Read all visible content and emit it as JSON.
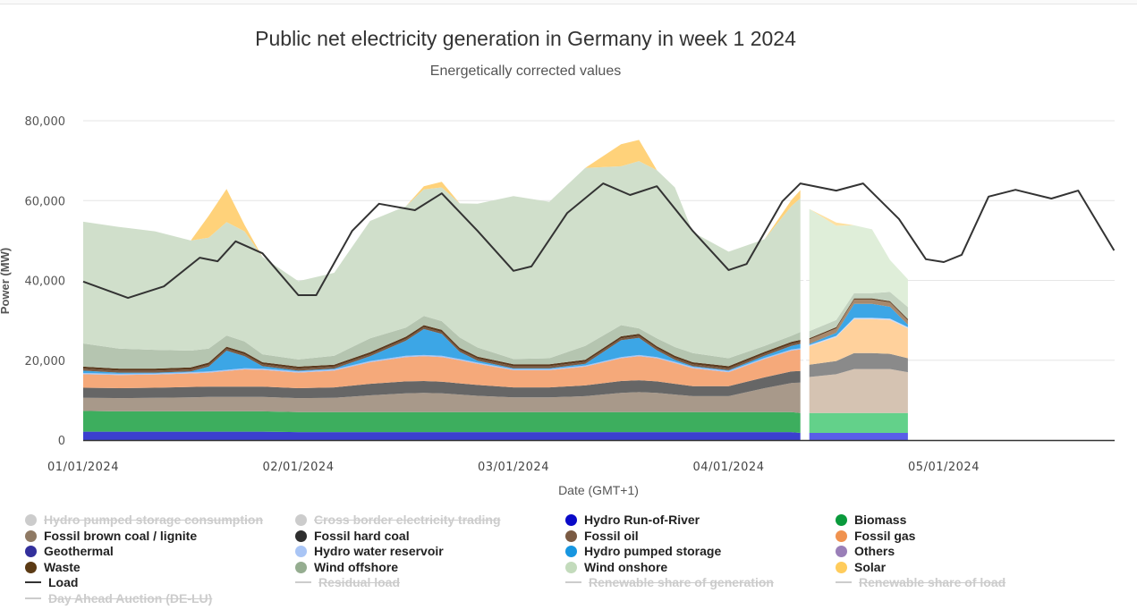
{
  "chart_data": {
    "type": "area",
    "title": "Public net electricity generation in Germany in week 1 2024",
    "subtitle": "Energetically corrected values",
    "xlabel": "Date (GMT+1)",
    "ylabel": "Power (MW)",
    "ylim": [
      0,
      80000
    ],
    "yticks": [
      0,
      20000,
      40000,
      60000,
      80000
    ],
    "ytick_labels": [
      "0",
      "20,000",
      "40,000",
      "60,000",
      "80,000"
    ],
    "x_unit": "hours since 01/01/2024 00:00",
    "xlim": [
      0,
      115
    ],
    "xticks": [
      0,
      24,
      48,
      72,
      96
    ],
    "xtick_labels": [
      "01/01/2024",
      "02/01/2024",
      "03/01/2024",
      "04/01/2024",
      "05/01/2024"
    ],
    "grid": true,
    "legend_position": "bottom",
    "actual_data_end_hour": 80,
    "forecast_end_hour": 92,
    "stack_order": [
      "Hydro Run-of-River",
      "Biomass",
      "Fossil brown coal / lignite",
      "Fossil hard coal",
      "Fossil gas",
      "Hydro water reservoir",
      "Hydro pumped storage",
      "Fossil oil",
      "Waste",
      "Wind offshore",
      "Wind onshore",
      "Solar"
    ],
    "x": [
      0,
      4,
      8,
      12,
      14,
      16,
      18,
      20,
      24,
      28,
      32,
      36,
      38,
      40,
      42,
      44,
      48,
      52,
      56,
      60,
      62,
      64,
      66,
      68,
      72,
      76,
      79,
      80,
      81,
      84,
      86,
      88,
      90,
      92
    ],
    "series": [
      {
        "name": "Hydro Run-of-River",
        "color": "#3b3fcf",
        "forecast_color": "#5a5ee8",
        "values": [
          2100,
          2100,
          2100,
          2100,
          2100,
          2100,
          2100,
          2100,
          2000,
          2000,
          2000,
          2000,
          2000,
          2000,
          2000,
          2000,
          2000,
          2000,
          2000,
          2000,
          2000,
          2000,
          2000,
          2000,
          2000,
          2000,
          2000,
          1800,
          1800,
          1800,
          1800,
          1800,
          1800,
          1800
        ]
      },
      {
        "name": "Biomass",
        "color": "#3dae5e",
        "forecast_color": "#63d18a",
        "values": [
          5200,
          5100,
          5100,
          5100,
          5100,
          5100,
          5100,
          5100,
          5000,
          5000,
          5000,
          5000,
          5000,
          5000,
          5000,
          5000,
          5000,
          5000,
          5000,
          5000,
          5000,
          5000,
          5000,
          5000,
          5000,
          5000,
          5000,
          5000,
          5000,
          5000,
          5000,
          5000,
          5000,
          5000
        ]
      },
      {
        "name": "Fossil brown coal / lignite",
        "color": "#a8998a",
        "forecast_color": "#d5c3b2",
        "values": [
          3300,
          3300,
          3400,
          3500,
          3600,
          3600,
          3600,
          3600,
          3500,
          3600,
          4200,
          4700,
          4800,
          4700,
          4400,
          4100,
          3700,
          3700,
          4000,
          4800,
          5000,
          4800,
          4400,
          4000,
          4000,
          6000,
          7300,
          7600,
          9000,
          9700,
          11000,
          11000,
          11000,
          10200
        ]
      },
      {
        "name": "Fossil hard coal",
        "color": "#666666",
        "forecast_color": "#8a8a8a",
        "values": [
          2500,
          2500,
          2500,
          2600,
          2600,
          2600,
          2600,
          2600,
          2500,
          2600,
          2900,
          3000,
          3000,
          2900,
          2800,
          2700,
          2500,
          2500,
          2700,
          3000,
          3000,
          2900,
          2700,
          2500,
          2500,
          2700,
          2900,
          2900,
          3100,
          3300,
          4000,
          4000,
          3800,
          3500
        ]
      },
      {
        "name": "Fossil gas",
        "color": "#f5a97a",
        "forecast_color": "#ffd19c",
        "values": [
          3400,
          3300,
          3300,
          3400,
          3500,
          3900,
          4300,
          4200,
          3900,
          4200,
          5400,
          6100,
          6200,
          6200,
          5800,
          5300,
          4300,
          4300,
          4700,
          5700,
          6000,
          5800,
          5200,
          4500,
          3500,
          4600,
          5200,
          5400,
          4600,
          6000,
          8500,
          8500,
          8500,
          7500
        ]
      },
      {
        "name": "Hydro water reservoir",
        "color": "#a9c5f5",
        "forecast_color": "#c9dafa",
        "values": [
          300,
          300,
          300,
          300,
          300,
          300,
          300,
          300,
          300,
          300,
          300,
          300,
          300,
          300,
          300,
          300,
          300,
          300,
          300,
          300,
          300,
          300,
          300,
          300,
          300,
          300,
          300,
          300,
          300,
          300,
          300,
          300,
          300,
          300
        ]
      },
      {
        "name": "Hydro pumped storage",
        "color": "#3ca6e6",
        "forecast_color": "#3ca6e6",
        "values": [
          600,
          300,
          200,
          200,
          1200,
          4800,
          3000,
          600,
          200,
          200,
          1200,
          3800,
          6500,
          5500,
          1800,
          500,
          200,
          200,
          400,
          4200,
          4300,
          1700,
          500,
          200,
          200,
          500,
          900,
          1100,
          300,
          800,
          3500,
          3500,
          3000,
          600
        ]
      },
      {
        "name": "Fossil oil",
        "color": "#7a5a43",
        "forecast_color": "#a7896d",
        "values": [
          500,
          500,
          500,
          500,
          500,
          500,
          500,
          500,
          500,
          500,
          500,
          500,
          500,
          500,
          500,
          500,
          500,
          500,
          500,
          500,
          500,
          500,
          500,
          500,
          500,
          500,
          500,
          500,
          1100,
          1100,
          1100,
          1100,
          1100,
          1100
        ]
      },
      {
        "name": "Waste",
        "color": "#5b3a1e",
        "forecast_color": "#5b3a1e",
        "values": [
          500,
          500,
          500,
          500,
          500,
          500,
          500,
          500,
          500,
          500,
          500,
          500,
          500,
          500,
          500,
          500,
          500,
          500,
          500,
          500,
          500,
          500,
          500,
          500,
          500,
          500,
          500,
          500,
          300,
          300,
          300,
          300,
          300,
          300
        ]
      },
      {
        "name": "Wind offshore",
        "color": "#b5c5b0",
        "forecast_color": "#c3d2bf",
        "values": [
          5800,
          5000,
          4700,
          4200,
          3500,
          2800,
          2700,
          2000,
          1800,
          2200,
          3500,
          2300,
          2300,
          2200,
          2600,
          2300,
          1300,
          1500,
          3500,
          2800,
          1400,
          2000,
          2200,
          2300,
          2000,
          1500,
          1500,
          2000,
          1800,
          1800,
          1300,
          1300,
          2300,
          3000
        ]
      },
      {
        "name": "Wind onshore",
        "color": "#d0dfcb",
        "forecast_color": "#dfeed9",
        "values": [
          30500,
          30500,
          29700,
          27600,
          27800,
          28400,
          27600,
          24400,
          19600,
          20800,
          29400,
          30400,
          31700,
          33500,
          33600,
          36000,
          40800,
          39200,
          44600,
          39800,
          41900,
          42100,
          40000,
          30300,
          26700,
          26700,
          32500,
          33500,
          30600,
          23600,
          17000,
          16000,
          8000,
          7000
        ]
      },
      {
        "name": "Solar",
        "color": "#ffd27a",
        "forecast_color": "#ffe1a1",
        "values": [
          0,
          0,
          0,
          0,
          5500,
          8300,
          1600,
          0,
          0,
          0,
          0,
          0,
          800,
          1400,
          0,
          0,
          0,
          0,
          0,
          5500,
          5300,
          0,
          0,
          0,
          0,
          0,
          1500,
          2000,
          0,
          800,
          0,
          0,
          0,
          0
        ]
      },
      {
        "name": "Load",
        "type": "line",
        "color": "#333333",
        "x": [
          0,
          5,
          9,
          13,
          15,
          17,
          20,
          24,
          26,
          30,
          33,
          37,
          40,
          44,
          48,
          50,
          54,
          58,
          61,
          64,
          68,
          72,
          74,
          78,
          80,
          84,
          87,
          91,
          94,
          96,
          98,
          101,
          104,
          108,
          111,
          115
        ],
        "values": [
          39700,
          35600,
          38500,
          45700,
          44800,
          49800,
          46800,
          36300,
          36300,
          52400,
          59200,
          57600,
          61800,
          52400,
          42400,
          43500,
          56900,
          64300,
          61400,
          63600,
          52400,
          42600,
          44100,
          59800,
          64300,
          62500,
          64300,
          55400,
          45300,
          44600,
          46400,
          61000,
          62700,
          60500,
          62500,
          47500
        ]
      }
    ]
  },
  "legend": [
    {
      "label": "Hydro pumped storage consumption",
      "kind": "dot",
      "color": "#cccccc",
      "hidden": true
    },
    {
      "label": "Cross border electricity trading",
      "kind": "dot",
      "color": "#cccccc",
      "hidden": true
    },
    {
      "label": "Hydro Run-of-River",
      "kind": "dot",
      "color": "#0a0ac8",
      "hidden": false
    },
    {
      "label": "Biomass",
      "kind": "dot",
      "color": "#0a9a3c",
      "hidden": false
    },
    {
      "label": "Fossil brown coal / lignite",
      "kind": "dot",
      "color": "#8f7a64",
      "hidden": false
    },
    {
      "label": "Fossil hard coal",
      "kind": "dot",
      "color": "#2e2e2e",
      "hidden": false
    },
    {
      "label": "Fossil oil",
      "kind": "dot",
      "color": "#7a5a43",
      "hidden": false
    },
    {
      "label": "Fossil gas",
      "kind": "dot",
      "color": "#f0924f",
      "hidden": false
    },
    {
      "label": "Geothermal",
      "kind": "dot",
      "color": "#33309c",
      "hidden": false
    },
    {
      "label": "Hydro water reservoir",
      "kind": "dot",
      "color": "#a9c5f5",
      "hidden": false
    },
    {
      "label": "Hydro pumped storage",
      "kind": "dot",
      "color": "#1796e0",
      "hidden": false
    },
    {
      "label": "Others",
      "kind": "dot",
      "color": "#9a7fb8",
      "hidden": false
    },
    {
      "label": "Waste",
      "kind": "dot",
      "color": "#5b3a14",
      "hidden": false
    },
    {
      "label": "Wind offshore",
      "kind": "dot",
      "color": "#95ad90",
      "hidden": false
    },
    {
      "label": "Wind onshore",
      "kind": "dot",
      "color": "#c3dbbc",
      "hidden": false
    },
    {
      "label": "Solar",
      "kind": "dot",
      "color": "#ffcc5c",
      "hidden": false
    },
    {
      "label": "Load",
      "kind": "line",
      "color": "#333333",
      "hidden": false
    },
    {
      "label": "Residual load",
      "kind": "line",
      "color": "#cccccc",
      "hidden": true
    },
    {
      "label": "Renewable share of generation",
      "kind": "line",
      "color": "#cccccc",
      "hidden": true
    },
    {
      "label": "Renewable share of load",
      "kind": "line",
      "color": "#cccccc",
      "hidden": true
    },
    {
      "label": "Day Ahead Auction (DE-LU)",
      "kind": "line",
      "color": "#cccccc",
      "hidden": true
    }
  ]
}
